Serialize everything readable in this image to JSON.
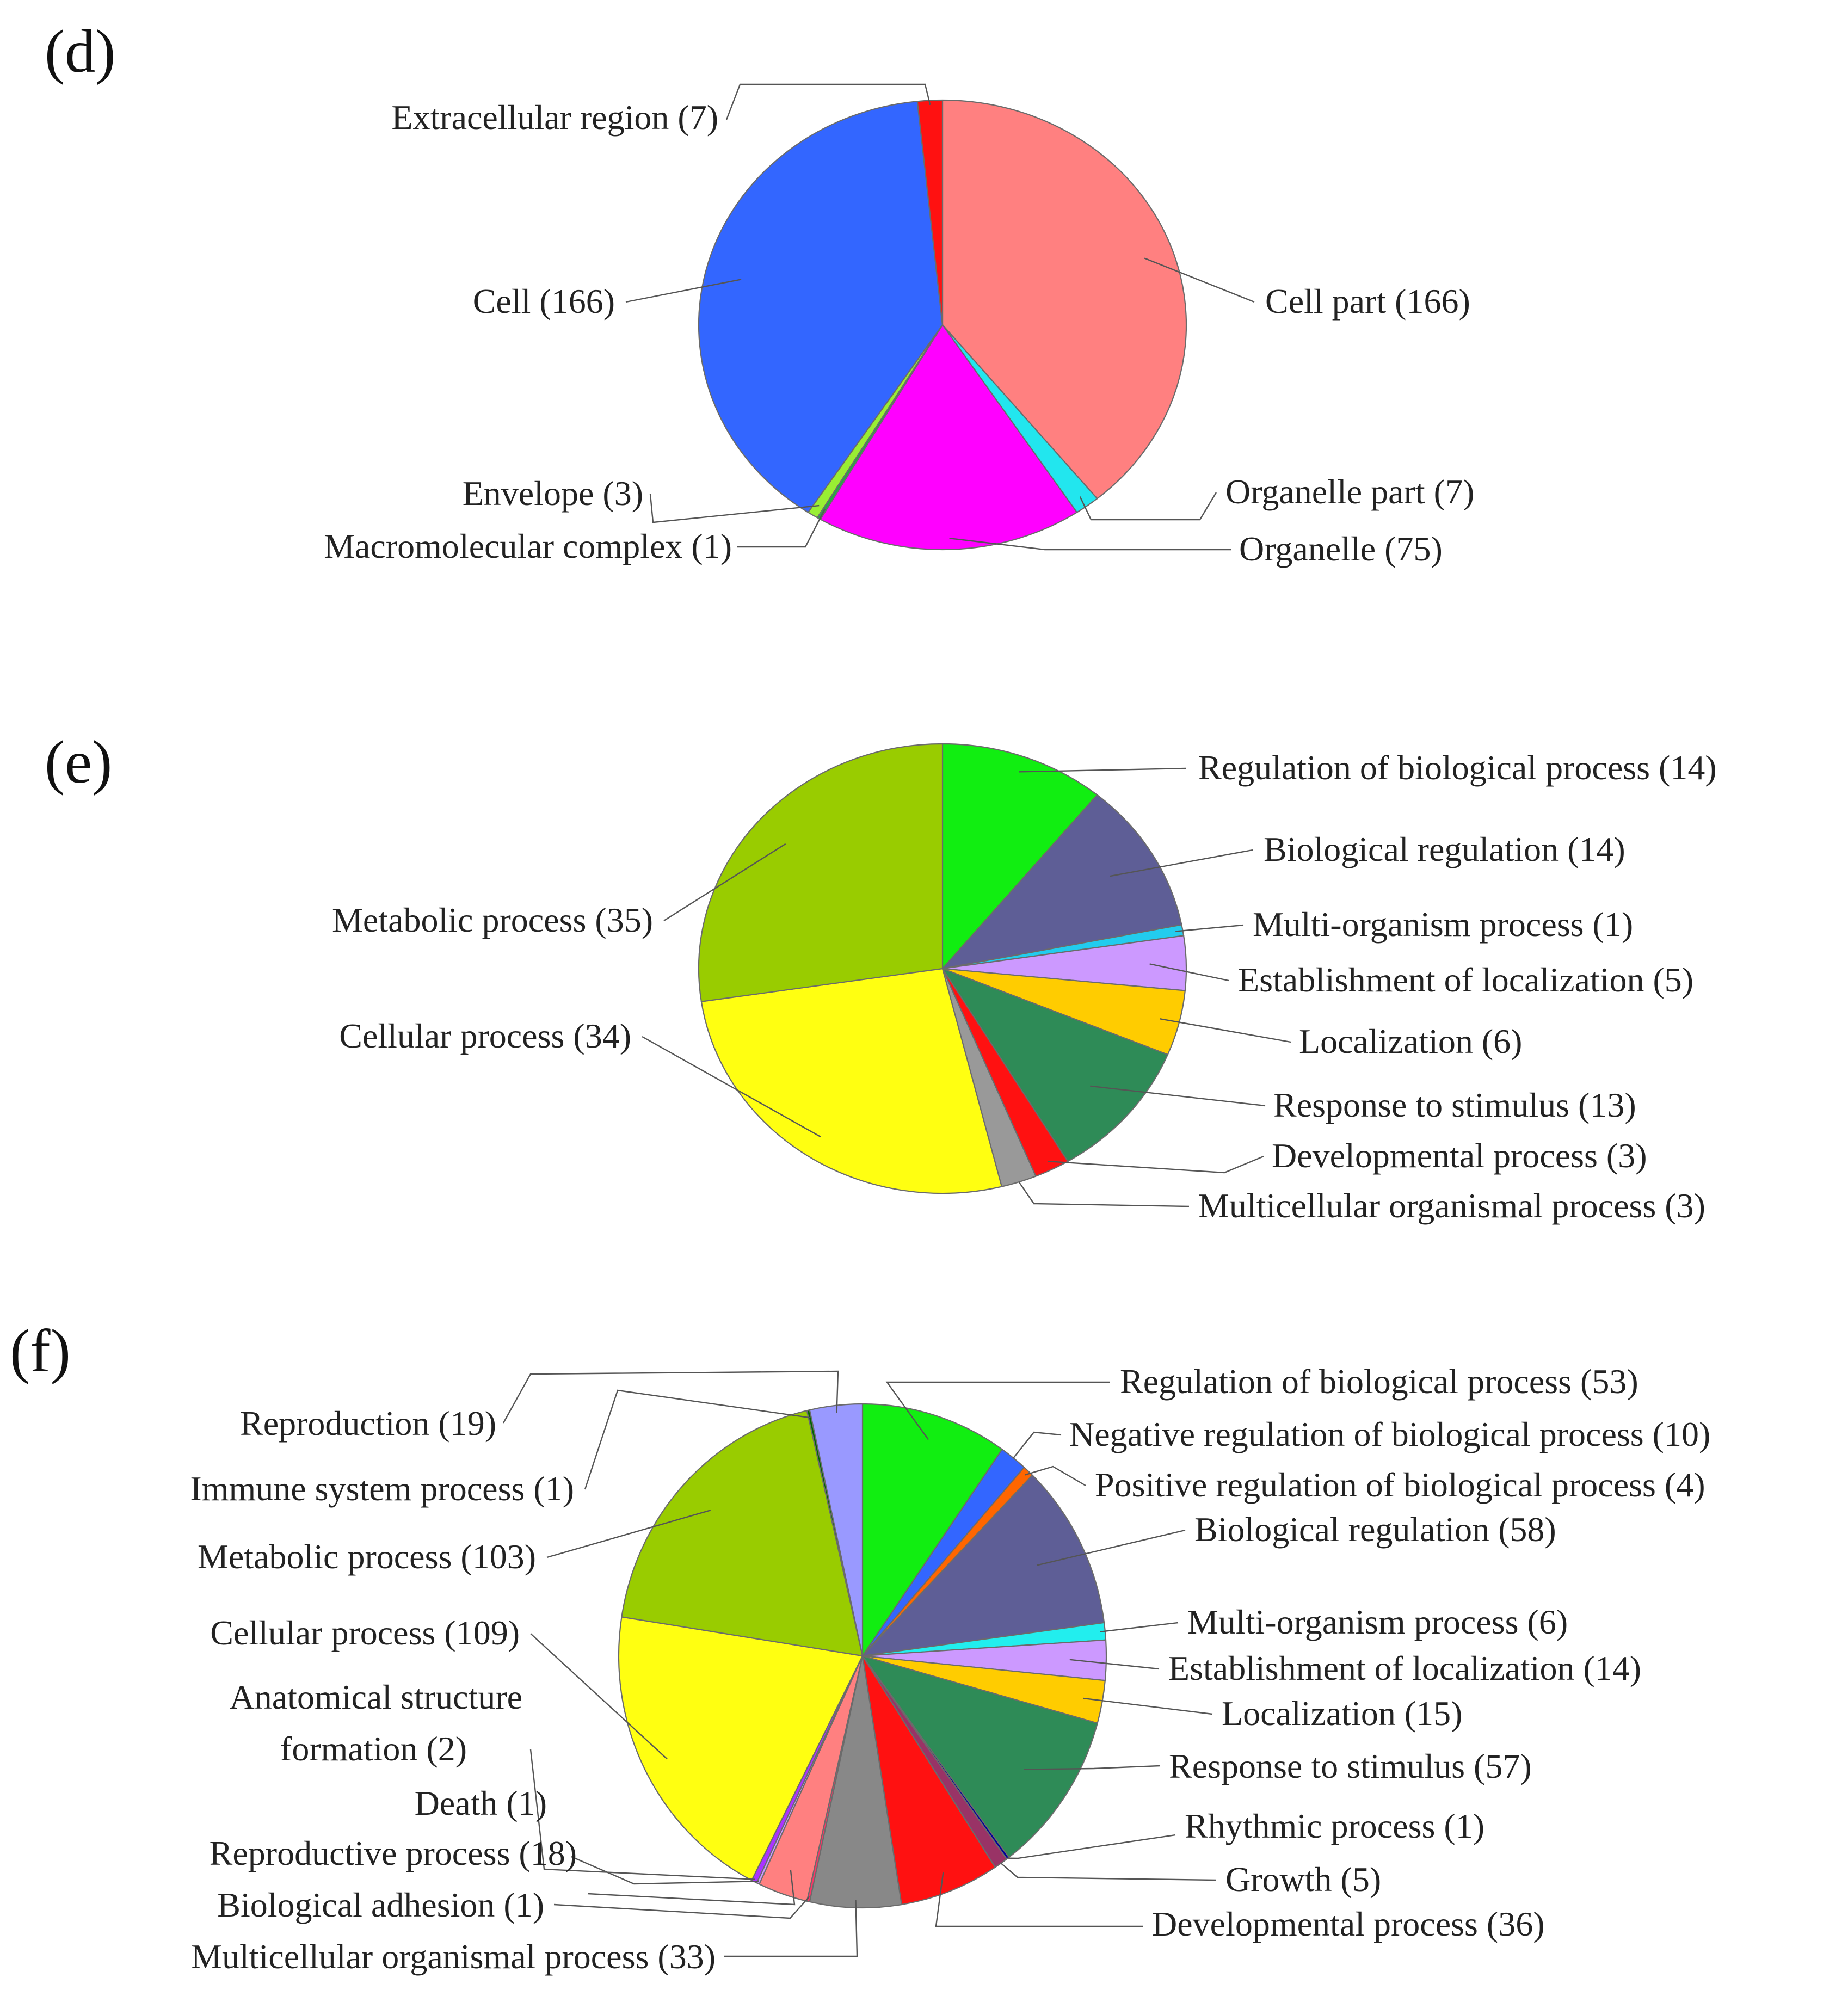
{
  "chart_data": [
    {
      "panel": "(d)",
      "type": "pie",
      "slices": [
        {
          "label": "Cell part (166)",
          "name": "Cell part",
          "value": 166,
          "color": "#ff8080"
        },
        {
          "label": "Organelle part (7)",
          "name": "Organelle part",
          "value": 7,
          "color": "#22e6ee"
        },
        {
          "label": "Organelle (75)",
          "name": "Organelle",
          "value": 75,
          "color": "#ff00ff"
        },
        {
          "label": "Macromolecular complex (1)",
          "name": "Macromolecular complex",
          "value": 1,
          "color": "#22aa44"
        },
        {
          "label": "Envelope (3)",
          "name": "Envelope",
          "value": 3,
          "color": "#99ee33"
        },
        {
          "label": "Cell (166)",
          "name": "Cell",
          "value": 166,
          "color": "#3366ff"
        },
        {
          "label": "Extracellular region (7)",
          "name": "Extracellular region",
          "value": 7,
          "color": "#ff1111"
        }
      ]
    },
    {
      "panel": "(e)",
      "type": "pie",
      "slices": [
        {
          "label": "Regulation of biological process (14)",
          "name": "Regulation of biological process",
          "value": 14,
          "color": "#11ee11"
        },
        {
          "label": "Biological regulation (14)",
          "name": "Biological regulation",
          "value": 14,
          "color": "#5e5e96"
        },
        {
          "label": "Multi-organism process (1)",
          "name": "Multi-organism process",
          "value": 1,
          "color": "#22ccee"
        },
        {
          "label": "Establishment of localization (5)",
          "name": "Establishment of localization",
          "value": 5,
          "color": "#cc99ff"
        },
        {
          "label": "Localization (6)",
          "name": "Localization",
          "value": 6,
          "color": "#ffcc00"
        },
        {
          "label": "Response to stimulus (13)",
          "name": "Response to stimulus",
          "value": 13,
          "color": "#2e8b57"
        },
        {
          "label": "Developmental process (3)",
          "name": "Developmental process",
          "value": 3,
          "color": "#ff1111"
        },
        {
          "label": "Multicellular organismal process (3)",
          "name": "Multicellular organismal process",
          "value": 3,
          "color": "#999999"
        },
        {
          "label": "Cellular process (34)",
          "name": "Cellular process",
          "value": 34,
          "color": "#ffff11"
        },
        {
          "label": "Metabolic process (35)",
          "name": "Metabolic process",
          "value": 35,
          "color": "#99cc00"
        }
      ]
    },
    {
      "panel": "(f)",
      "type": "pie",
      "slices": [
        {
          "label": "Regulation of biological process (53)",
          "name": "Regulation of biological process",
          "value": 53,
          "color": "#11ee11"
        },
        {
          "label": "Negative regulation of biological process (10)",
          "name": "Negative regulation of biological process",
          "value": 10,
          "color": "#3366ff"
        },
        {
          "label": "Positive regulation of biological process (4)",
          "name": "Positive regulation of biological process",
          "value": 4,
          "color": "#ff6600"
        },
        {
          "label": "Biological regulation (58)",
          "name": "Biological regulation",
          "value": 58,
          "color": "#5e5e96"
        },
        {
          "label": "Multi-organism process (6)",
          "name": "Multi-organism process",
          "value": 6,
          "color": "#22eeee"
        },
        {
          "label": "Establishment of localization (14)",
          "name": "Establishment of localization",
          "value": 14,
          "color": "#cc99ff"
        },
        {
          "label": "Localization (15)",
          "name": "Localization",
          "value": 15,
          "color": "#ffcc00"
        },
        {
          "label": "Response to stimulus (57)",
          "name": "Response to stimulus",
          "value": 57,
          "color": "#2e8b57"
        },
        {
          "label": "Rhythmic process (1)",
          "name": "Rhythmic process",
          "value": 1,
          "color": "#000099"
        },
        {
          "label": "Growth (5)",
          "name": "Growth",
          "value": 5,
          "color": "#993366"
        },
        {
          "label": "Developmental process (36)",
          "name": "Developmental process",
          "value": 36,
          "color": "#ff1111"
        },
        {
          "label": "Multicellular organismal process (33)",
          "name": "Multicellular organismal process",
          "value": 33,
          "color": "#888888"
        },
        {
          "label": "Biological adhesion (1)",
          "name": "Biological adhesion",
          "value": 1,
          "color": "#ff3366"
        },
        {
          "label": "Reproductive process (18)",
          "name": "Reproductive process",
          "value": 18,
          "color": "#ff8080"
        },
        {
          "label": "Death (1)",
          "name": "Death",
          "value": 1,
          "color": "#cc99ff"
        },
        {
          "label": "Anatomical structure formation (2)",
          "name": "Anatomical structure formation",
          "value": 2,
          "color": "#aa33ff"
        },
        {
          "label": "Cellular process (109)",
          "name": "Cellular process",
          "value": 109,
          "color": "#ffff11"
        },
        {
          "label": "Metabolic process (103)",
          "name": "Metabolic process",
          "value": 103,
          "color": "#99cc00"
        },
        {
          "label": "Immune system process (1)",
          "name": "Immune system process",
          "value": 1,
          "color": "#006600"
        },
        {
          "label": "Reproduction (19)",
          "name": "Reproduction",
          "value": 19,
          "color": "#9999ff"
        }
      ]
    }
  ]
}
